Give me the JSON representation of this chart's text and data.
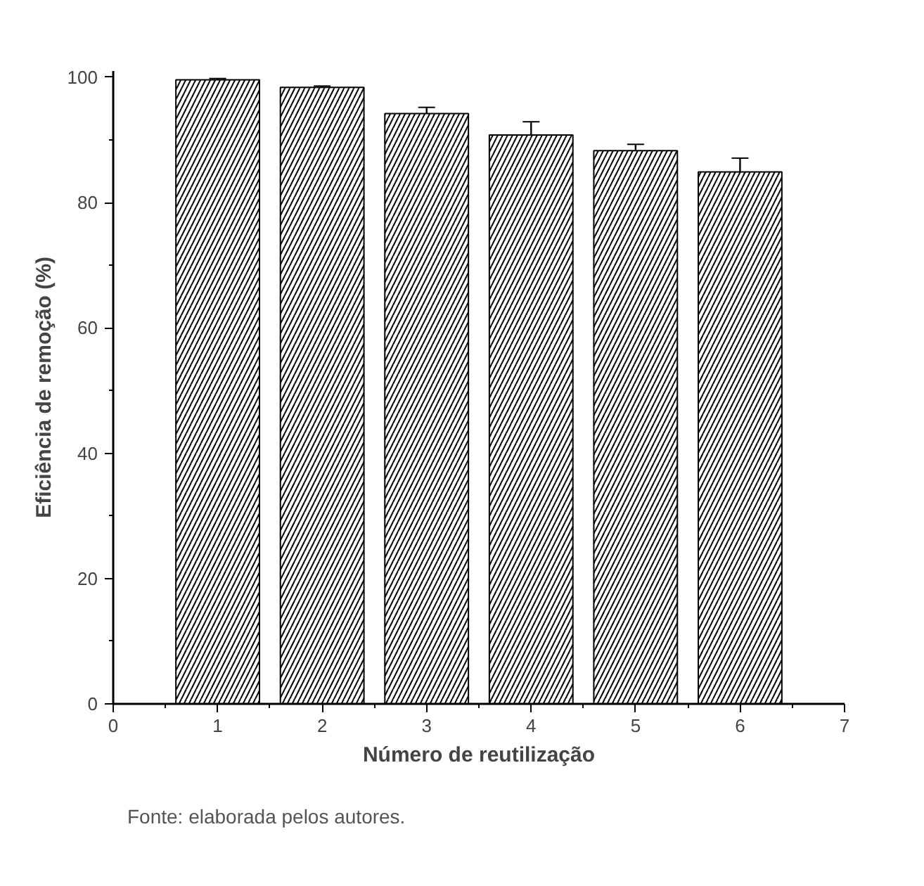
{
  "chart_data": {
    "type": "bar",
    "xlabel": "Número de reutilização",
    "ylabel": "Eficiência de remoção (%)",
    "x": [
      1,
      2,
      3,
      4,
      5,
      6
    ],
    "values": [
      99.6,
      98.4,
      94.2,
      90.8,
      88.3,
      84.9
    ],
    "errors": [
      0.2,
      0.2,
      1.0,
      2.1,
      1.0,
      2.2
    ],
    "color": "#ffffff",
    "xlim": [
      0,
      7
    ],
    "xticks": [
      0,
      1,
      2,
      3,
      4,
      5,
      6,
      7
    ],
    "ylim": [
      0,
      101
    ],
    "yticks": [
      0,
      20,
      40,
      60,
      80,
      100
    ],
    "grid": false,
    "annotations": [
      "Fonte: elaborada pelos autores."
    ]
  }
}
